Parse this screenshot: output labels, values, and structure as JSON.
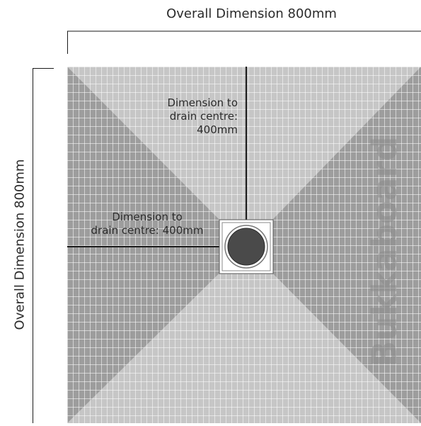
{
  "diagram": {
    "overall_width_label": "Overall Dimension 800mm",
    "overall_height_label": "Overall Dimension 800mm",
    "drain_vertical_label": [
      "Dimension to",
      "drain centre:",
      "400mm"
    ],
    "drain_horizontal_label": [
      "Dimension to",
      "drain centre: 400mm"
    ],
    "watermark": "Bukkaboard",
    "colors": {
      "board_light": "#c6c6c6",
      "board_dark": "#9d9d9d",
      "tile_line": "#ffffff",
      "dimension_line": "#1a1a1a",
      "drain": "#4a4a4a"
    }
  }
}
